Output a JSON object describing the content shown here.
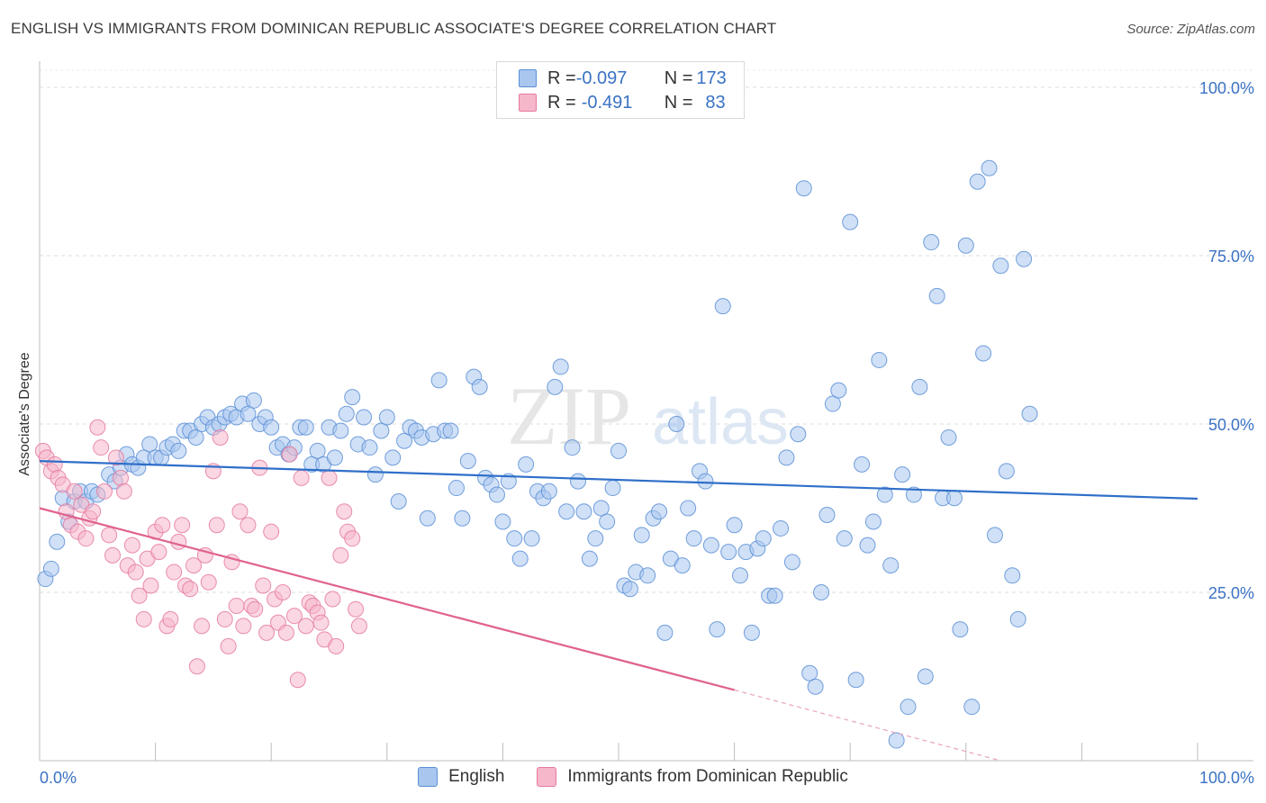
{
  "title": "ENGLISH VS IMMIGRANTS FROM DOMINICAN REPUBLIC ASSOCIATE'S DEGREE CORRELATION CHART",
  "source": "Source: ZipAtlas.com",
  "watermark": {
    "zip": "ZIP",
    "atlas": "atlas"
  },
  "legend": {
    "rows": [
      {
        "r_label": "R = ",
        "r_value": "-0.097",
        "n_label": "N = ",
        "n_value": "173"
      },
      {
        "r_label": "R = ",
        "r_value": "-0.491",
        "n_label": "N = ",
        "n_value": "83"
      }
    ]
  },
  "chart_data": {
    "type": "scatter",
    "xlabel": "",
    "ylabel": "Associate's Degree",
    "xlim": [
      0,
      100
    ],
    "ylim": [
      0,
      100
    ],
    "x_tick_labels": [
      {
        "value": 0,
        "label": "0.0%"
      },
      {
        "value": 100,
        "label": "100.0%"
      }
    ],
    "y_tick_labels": [
      {
        "value": 25,
        "label": "25.0%"
      },
      {
        "value": 50,
        "label": "50.0%"
      },
      {
        "value": 75,
        "label": "75.0%"
      },
      {
        "value": 100,
        "label": "100.0%"
      }
    ],
    "grid": "horizontal-dashed",
    "legend_position": "top-center",
    "series": [
      {
        "name": "English",
        "color": "#5b8fd6",
        "fill": "#a9c6ee",
        "trend": {
          "x": [
            0,
            100
          ],
          "y": [
            44.5,
            38.9
          ],
          "style": "solid"
        },
        "points": [
          [
            0.5,
            27
          ],
          [
            1,
            28.5
          ],
          [
            1.5,
            32.5
          ],
          [
            2,
            39
          ],
          [
            2.5,
            35.5
          ],
          [
            3,
            38.5
          ],
          [
            3.5,
            40
          ],
          [
            4,
            38.5
          ],
          [
            4.5,
            40
          ],
          [
            5,
            39.5
          ],
          [
            6,
            42.5
          ],
          [
            6.5,
            41.5
          ],
          [
            7,
            43.5
          ],
          [
            7.5,
            45.5
          ],
          [
            8,
            44
          ],
          [
            8.5,
            43.5
          ],
          [
            9,
            45
          ],
          [
            9.5,
            47
          ],
          [
            10,
            45
          ],
          [
            10.5,
            45
          ],
          [
            11,
            46.5
          ],
          [
            11.5,
            47
          ],
          [
            12,
            46
          ],
          [
            12.5,
            49
          ],
          [
            13,
            49
          ],
          [
            13.5,
            48
          ],
          [
            14,
            50
          ],
          [
            14.5,
            51
          ],
          [
            15,
            49.5
          ],
          [
            15.5,
            50
          ],
          [
            16,
            51
          ],
          [
            16.5,
            51.5
          ],
          [
            17,
            51
          ],
          [
            17.5,
            53
          ],
          [
            18,
            51.5
          ],
          [
            18.5,
            53.5
          ],
          [
            19,
            50
          ],
          [
            19.5,
            51
          ],
          [
            20,
            49.5
          ],
          [
            20.5,
            46.5
          ],
          [
            21,
            47
          ],
          [
            21.5,
            45.5
          ],
          [
            22,
            46.5
          ],
          [
            22.5,
            49.5
          ],
          [
            23,
            49.5
          ],
          [
            23.5,
            44
          ],
          [
            24,
            46
          ],
          [
            24.5,
            44
          ],
          [
            25,
            49.5
          ],
          [
            25.5,
            45
          ],
          [
            26,
            49
          ],
          [
            26.5,
            51.5
          ],
          [
            27,
            54
          ],
          [
            27.5,
            47
          ],
          [
            28,
            51
          ],
          [
            28.5,
            46.5
          ],
          [
            29,
            42.5
          ],
          [
            29.5,
            49
          ],
          [
            30,
            51
          ],
          [
            30.5,
            45
          ],
          [
            31,
            38.5
          ],
          [
            31.5,
            47.5
          ],
          [
            32,
            49.5
          ],
          [
            32.5,
            49
          ],
          [
            33,
            48
          ],
          [
            33.5,
            36
          ],
          [
            34,
            48.5
          ],
          [
            34.5,
            56.5
          ],
          [
            35,
            49
          ],
          [
            35.5,
            49
          ],
          [
            36,
            40.5
          ],
          [
            36.5,
            36
          ],
          [
            37,
            44.5
          ],
          [
            37.5,
            57
          ],
          [
            38,
            55.5
          ],
          [
            38.5,
            42
          ],
          [
            39,
            41
          ],
          [
            39.5,
            39.5
          ],
          [
            40,
            35.5
          ],
          [
            40.5,
            41.5
          ],
          [
            41,
            33
          ],
          [
            41.5,
            30
          ],
          [
            42,
            44
          ],
          [
            42.5,
            33
          ],
          [
            43,
            40
          ],
          [
            43.5,
            39
          ],
          [
            44,
            40
          ],
          [
            44.5,
            55.5
          ],
          [
            45,
            58.5
          ],
          [
            45.5,
            37
          ],
          [
            46,
            46.5
          ],
          [
            46.5,
            41.5
          ],
          [
            47,
            37
          ],
          [
            47.5,
            30
          ],
          [
            48,
            33
          ],
          [
            48.5,
            37.5
          ],
          [
            49,
            35.5
          ],
          [
            49.5,
            40.5
          ],
          [
            50,
            46
          ],
          [
            50.5,
            26
          ],
          [
            51,
            25.5
          ],
          [
            51.5,
            28
          ],
          [
            52,
            33.5
          ],
          [
            52.5,
            27.5
          ],
          [
            53,
            36
          ],
          [
            53.5,
            37
          ],
          [
            54,
            19
          ],
          [
            54.5,
            30
          ],
          [
            55,
            50
          ],
          [
            55.5,
            29
          ],
          [
            56,
            37.5
          ],
          [
            56.5,
            33
          ],
          [
            57,
            43
          ],
          [
            57.5,
            41.5
          ],
          [
            58,
            32
          ],
          [
            58.5,
            19.5
          ],
          [
            59,
            67.5
          ],
          [
            59.5,
            31
          ],
          [
            60,
            35
          ],
          [
            60.5,
            27.5
          ],
          [
            61,
            31
          ],
          [
            61.5,
            19
          ],
          [
            62,
            31.5
          ],
          [
            62.5,
            33
          ],
          [
            63,
            24.5
          ],
          [
            63.5,
            24.5
          ],
          [
            64,
            34.5
          ],
          [
            64.5,
            45
          ],
          [
            65,
            29.5
          ],
          [
            65.5,
            48.5
          ],
          [
            66,
            85
          ],
          [
            66.5,
            13
          ],
          [
            67,
            11
          ],
          [
            67.5,
            25
          ],
          [
            68,
            36.5
          ],
          [
            68.5,
            53
          ],
          [
            69,
            55
          ],
          [
            69.5,
            33
          ],
          [
            70,
            80
          ],
          [
            70.5,
            12
          ],
          [
            71,
            44
          ],
          [
            71.5,
            32
          ],
          [
            72,
            35.5
          ],
          [
            72.5,
            59.5
          ],
          [
            73,
            39.5
          ],
          [
            73.5,
            29
          ],
          [
            74,
            3
          ],
          [
            74.5,
            42.5
          ],
          [
            75,
            8
          ],
          [
            75.5,
            39.5
          ],
          [
            76,
            55.5
          ],
          [
            76.5,
            12.5
          ],
          [
            77,
            77
          ],
          [
            77.5,
            69
          ],
          [
            78,
            39
          ],
          [
            78.5,
            48
          ],
          [
            79,
            39
          ],
          [
            79.5,
            19.5
          ],
          [
            80,
            76.5
          ],
          [
            80.5,
            8
          ],
          [
            81,
            86
          ],
          [
            81.5,
            60.5
          ],
          [
            82,
            88
          ],
          [
            82.5,
            33.5
          ],
          [
            83,
            73.5
          ],
          [
            83.5,
            43
          ],
          [
            84,
            27.5
          ],
          [
            84.5,
            21
          ],
          [
            85,
            74.5
          ],
          [
            85.5,
            51.5
          ]
        ]
      },
      {
        "name": "Immigrants from Dominican Republic",
        "color": "#e57aa0",
        "fill": "#f6b7cb",
        "trend": {
          "x": [
            0,
            60
          ],
          "y": [
            37.5,
            10.5
          ],
          "style": "solid",
          "dashed_extension": {
            "x": [
              60,
              83
            ],
            "y": [
              10.5,
              0
            ]
          }
        },
        "points": [
          [
            0.3,
            46
          ],
          [
            0.6,
            45
          ],
          [
            1,
            43
          ],
          [
            1.3,
            44
          ],
          [
            1.6,
            42
          ],
          [
            2,
            41
          ],
          [
            2.3,
            37
          ],
          [
            2.7,
            35
          ],
          [
            3,
            40
          ],
          [
            3.3,
            34
          ],
          [
            3.6,
            38
          ],
          [
            4,
            33
          ],
          [
            4.3,
            36
          ],
          [
            4.6,
            37
          ],
          [
            5,
            49.5
          ],
          [
            5.3,
            46.5
          ],
          [
            5.6,
            40
          ],
          [
            6,
            33.5
          ],
          [
            6.3,
            30.5
          ],
          [
            6.6,
            45
          ],
          [
            7,
            42
          ],
          [
            7.3,
            40
          ],
          [
            7.6,
            29
          ],
          [
            8,
            32
          ],
          [
            8.3,
            28
          ],
          [
            8.6,
            24.5
          ],
          [
            9,
            21
          ],
          [
            9.3,
            30
          ],
          [
            9.6,
            26
          ],
          [
            10,
            34
          ],
          [
            10.3,
            31
          ],
          [
            10.6,
            35
          ],
          [
            11,
            20
          ],
          [
            11.3,
            21
          ],
          [
            11.6,
            28
          ],
          [
            12,
            32.5
          ],
          [
            12.3,
            35
          ],
          [
            12.6,
            26
          ],
          [
            13,
            25.5
          ],
          [
            13.3,
            29
          ],
          [
            13.6,
            14
          ],
          [
            14,
            20
          ],
          [
            14.3,
            30.5
          ],
          [
            14.6,
            26.5
          ],
          [
            15,
            43
          ],
          [
            15.3,
            35
          ],
          [
            15.6,
            48
          ],
          [
            16,
            21
          ],
          [
            16.3,
            17
          ],
          [
            16.6,
            29.5
          ],
          [
            17,
            23
          ],
          [
            17.3,
            37
          ],
          [
            17.6,
            20
          ],
          [
            18,
            35
          ],
          [
            18.3,
            23
          ],
          [
            18.6,
            22.5
          ],
          [
            19,
            43.5
          ],
          [
            19.3,
            26
          ],
          [
            19.6,
            19
          ],
          [
            20,
            34
          ],
          [
            20.3,
            24
          ],
          [
            20.6,
            20.5
          ],
          [
            21,
            25
          ],
          [
            21.3,
            19
          ],
          [
            21.6,
            45.5
          ],
          [
            22,
            21.5
          ],
          [
            22.3,
            12
          ],
          [
            22.6,
            42
          ],
          [
            23,
            20
          ],
          [
            23.3,
            23.5
          ],
          [
            23.6,
            23
          ],
          [
            24,
            22
          ],
          [
            24.3,
            20.5
          ],
          [
            24.6,
            18
          ],
          [
            25,
            42
          ],
          [
            25.3,
            24
          ],
          [
            25.6,
            17
          ],
          [
            26,
            30.5
          ],
          [
            26.3,
            37
          ],
          [
            26.6,
            34
          ],
          [
            27,
            33
          ],
          [
            27.3,
            22.5
          ],
          [
            27.6,
            20
          ]
        ]
      }
    ]
  },
  "bottom_legend": {
    "items": [
      {
        "label": "English"
      },
      {
        "label": "Immigrants from Dominican Republic"
      }
    ]
  }
}
